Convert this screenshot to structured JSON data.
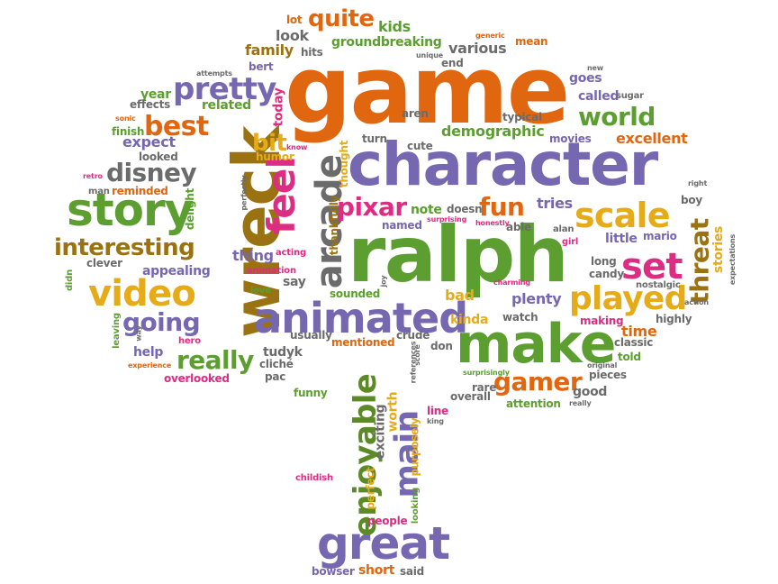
{
  "words": {
    "game": "game",
    "character": "character",
    "ralph": "ralph",
    "wreck": "wreck",
    "make": "make",
    "animated": "animated",
    "story": "story",
    "great": "great",
    "feel": "feel",
    "arcade": "arcade",
    "scale": "scale",
    "video": "video",
    "pretty": "pretty",
    "enjoyable": "enjoyable",
    "main": "main",
    "set": "set",
    "played": "played",
    "threat": "threat",
    "interesting": "interesting",
    "disney": "disney",
    "best": "best",
    "world": "world",
    "pixar": "pixar",
    "fun": "fun",
    "really": "really",
    "going": "going",
    "gamer": "gamer",
    "quite": "quite",
    "bit": "bit",
    "demographic": "demographic",
    "kids": "kids",
    "look": "look",
    "family": "family",
    "groundbreaking": "groundbreaking",
    "various": "various",
    "mean": "mean",
    "hits": "hits",
    "lot": "lot",
    "bert": "bert",
    "end": "end",
    "unique": "unique",
    "generic": "generic",
    "goes": "goes",
    "attempts": "attempts",
    "year": "year",
    "effects": "effects",
    "related": "related",
    "today": "today",
    "called": "called",
    "sugar": "sugar",
    "aren": "aren",
    "typical": "typical",
    "sonic": "sonic",
    "finish": "finish",
    "looked": "looked",
    "expect": "expect",
    "humor": "humor",
    "know": "know",
    "turn": "turn",
    "cute": "cute",
    "movies": "movies",
    "excellent": "excellent",
    "right": "right",
    "retro": "retro",
    "man": "man",
    "reminded": "reminded",
    "delight": "delight",
    "perfectly": "perfectly",
    "thought": "thought",
    "note": "note",
    "doesn": "doesn",
    "tries": "tries",
    "boy": "boy",
    "named": "named",
    "surprising": "surprising",
    "able": "able",
    "alan": "alan",
    "honestly": "honestly",
    "girl": "girl",
    "little": "little",
    "mario": "mario",
    "stories": "stories",
    "expectations": "expectations",
    "thing": "thing",
    "acting": "acting",
    "clever": "clever",
    "appealing": "appealing",
    "thankfully": "thankfully",
    "long": "long",
    "candy": "candy",
    "nostalgic": "nostalgic",
    "didn": "didn",
    "animation": "animation",
    "say": "say",
    "love": "love",
    "joy": "joy",
    "sounded": "sounded",
    "bad": "bad",
    "charming": "charming",
    "plenty": "plenty",
    "action": "action",
    "leaving": "leaving",
    "way": "way",
    "kinda": "kinda",
    "watch": "watch",
    "making": "making",
    "highly": "highly",
    "usually": "usually",
    "mentioned": "mentioned",
    "crude": "crude",
    "time": "time",
    "classic": "classic",
    "hero": "hero",
    "help": "help",
    "tudyk": "tudyk",
    "cliché": "cliché",
    "experience": "experience",
    "don": "don",
    "told": "told",
    "pac": "pac",
    "overlooked": "overlooked",
    "references": "references",
    "score": "score",
    "surprisingly": "surprisingly",
    "pieces": "pieces",
    "rare": "rare",
    "good": "good",
    "funny": "funny",
    "overall": "overall",
    "really_small": "really",
    "attention": "attention",
    "worth": "worth",
    "line": "line",
    "king": "king",
    "exciting": "exciting",
    "purposely": "purposely",
    "childish": "childish",
    "perfect": "perfect",
    "people": "people",
    "looking": "looking",
    "bowser": "bowser",
    "short": "short",
    "said": "said",
    "original": "original",
    "new": "new"
  }
}
